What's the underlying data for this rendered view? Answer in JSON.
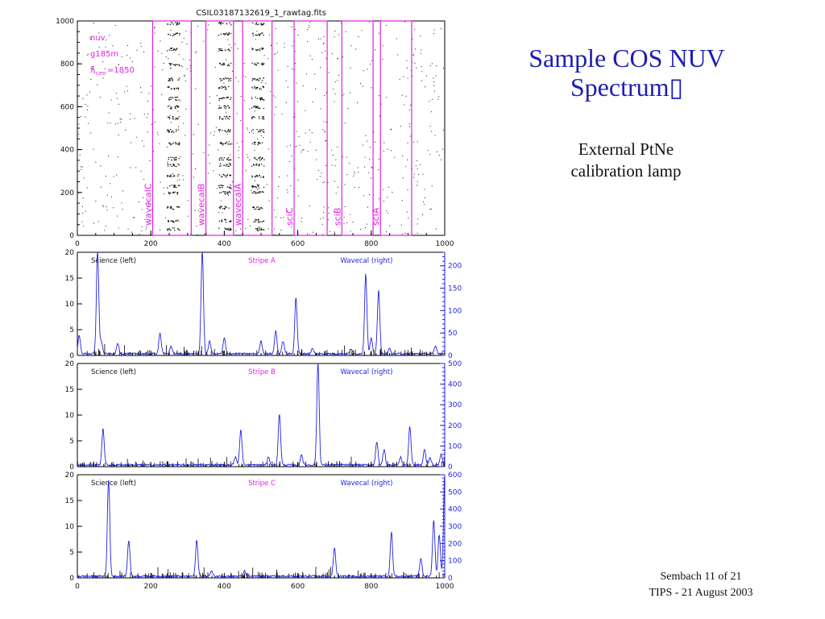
{
  "slide": {
    "title_line1": "Sample COS NUV",
    "title_line2": "Spectrum▯",
    "subtitle_line1": "External PtNe",
    "subtitle_line2": "calibration lamp",
    "footer_line1": "Sembach 11 of 21",
    "footer_line2": "TIPS - 21 August 2003"
  },
  "colors": {
    "title": "#1d1db4",
    "spectrum": "#2323e0",
    "magenta": "#e020e0",
    "stripe_label": "#e020e0",
    "dots": "#111111"
  },
  "chart_data": [
    {
      "type": "scatter",
      "title": "CSIL03187132619_1_rawtag.fits",
      "xlim": [
        0,
        1000
      ],
      "ylim": [
        0,
        1000
      ],
      "xticks": [
        "0",
        "200",
        "400",
        "600",
        "800",
        "1000"
      ],
      "yticks": [
        "0",
        "200",
        "400",
        "600",
        "800",
        "1000"
      ],
      "annotations": [
        "nuv",
        "g185m",
        "λ",
        "cen",
        "=1850"
      ],
      "regions": [
        {
          "label": "wavecalC",
          "x": [
            205,
            310
          ]
        },
        {
          "label": "wavecalB",
          "x": [
            350,
            425
          ]
        },
        {
          "label": "wavecalA",
          "x": [
            450,
            530
          ]
        },
        {
          "label": "sciC",
          "x": [
            590,
            680
          ]
        },
        {
          "label": "sciB",
          "x": [
            720,
            805
          ]
        },
        {
          "label": "sciA",
          "x": [
            825,
            910
          ]
        }
      ],
      "bright_columns_x": [
        260,
        400,
        490
      ],
      "bright_rows_y": [
        990,
        940,
        870,
        800,
        730,
        690,
        640,
        600,
        550,
        490,
        430,
        360,
        330,
        280,
        230,
        200,
        130,
        70,
        30
      ]
    },
    {
      "type": "line",
      "stripe": "Stripe A",
      "left_label": "Science (left)",
      "right_label": "Wavecal (right)",
      "xlim": [
        0,
        1000
      ],
      "ylim": [
        0,
        20
      ],
      "y2lim": [
        0,
        230
      ],
      "xticks": [
        "0",
        "200",
        "400",
        "600",
        "800",
        "1000"
      ],
      "yticks": [
        "0",
        "5",
        "10",
        "15",
        "20"
      ],
      "y2ticks": [
        "0",
        "50",
        "100",
        "150",
        "200"
      ],
      "peaks": [
        {
          "x": 5,
          "y": 3.5
        },
        {
          "x": 55,
          "y": 20
        },
        {
          "x": 65,
          "y": 2.5
        },
        {
          "x": 110,
          "y": 2
        },
        {
          "x": 225,
          "y": 4
        },
        {
          "x": 255,
          "y": 1.5
        },
        {
          "x": 340,
          "y": 20
        },
        {
          "x": 360,
          "y": 2.5
        },
        {
          "x": 400,
          "y": 3
        },
        {
          "x": 500,
          "y": 2.5
        },
        {
          "x": 540,
          "y": 4.5
        },
        {
          "x": 560,
          "y": 2.5
        },
        {
          "x": 595,
          "y": 11
        },
        {
          "x": 640,
          "y": 1
        },
        {
          "x": 745,
          "y": 1
        },
        {
          "x": 785,
          "y": 15.5
        },
        {
          "x": 800,
          "y": 3
        },
        {
          "x": 820,
          "y": 12.5
        },
        {
          "x": 850,
          "y": 1
        },
        {
          "x": 975,
          "y": 1.5
        }
      ]
    },
    {
      "type": "line",
      "stripe": "Stripe B",
      "left_label": "Science (left)",
      "right_label": "Wavecal (right)",
      "xlim": [
        0,
        1000
      ],
      "ylim": [
        0,
        20
      ],
      "y2lim": [
        0,
        500
      ],
      "xticks": [
        "0",
        "200",
        "400",
        "600",
        "800",
        "1000"
      ],
      "yticks": [
        "0",
        "5",
        "10",
        "15",
        "20"
      ],
      "y2ticks": [
        "0",
        "100",
        "200",
        "300",
        "400",
        "500"
      ],
      "peaks": [
        {
          "x": 70,
          "y": 7
        },
        {
          "x": 430,
          "y": 1.5
        },
        {
          "x": 445,
          "y": 7
        },
        {
          "x": 520,
          "y": 1.5
        },
        {
          "x": 550,
          "y": 10
        },
        {
          "x": 610,
          "y": 2
        },
        {
          "x": 655,
          "y": 20
        },
        {
          "x": 815,
          "y": 4.5
        },
        {
          "x": 835,
          "y": 3
        },
        {
          "x": 880,
          "y": 1.5
        },
        {
          "x": 905,
          "y": 7.5
        },
        {
          "x": 945,
          "y": 3
        },
        {
          "x": 960,
          "y": 1.5
        },
        {
          "x": 990,
          "y": 2
        }
      ]
    },
    {
      "type": "line",
      "stripe": "Stripe C",
      "left_label": "Science (left)",
      "right_label": "Wavecal (right)",
      "xlim": [
        0,
        1000
      ],
      "ylim": [
        0,
        20
      ],
      "y2lim": [
        0,
        600
      ],
      "xticks": [
        "0",
        "200",
        "400",
        "600",
        "800",
        "1000"
      ],
      "yticks": [
        "0",
        "5",
        "10",
        "15",
        "20"
      ],
      "y2ticks": [
        "0",
        "100",
        "200",
        "300",
        "400",
        "500",
        "600"
      ],
      "peaks": [
        {
          "x": 85,
          "y": 19
        },
        {
          "x": 140,
          "y": 7
        },
        {
          "x": 325,
          "y": 7
        },
        {
          "x": 365,
          "y": 1
        },
        {
          "x": 455,
          "y": 1
        },
        {
          "x": 700,
          "y": 5.5
        },
        {
          "x": 855,
          "y": 8.5
        },
        {
          "x": 935,
          "y": 3.5
        },
        {
          "x": 970,
          "y": 11
        },
        {
          "x": 985,
          "y": 8
        },
        {
          "x": 1000,
          "y": 20
        }
      ]
    }
  ]
}
